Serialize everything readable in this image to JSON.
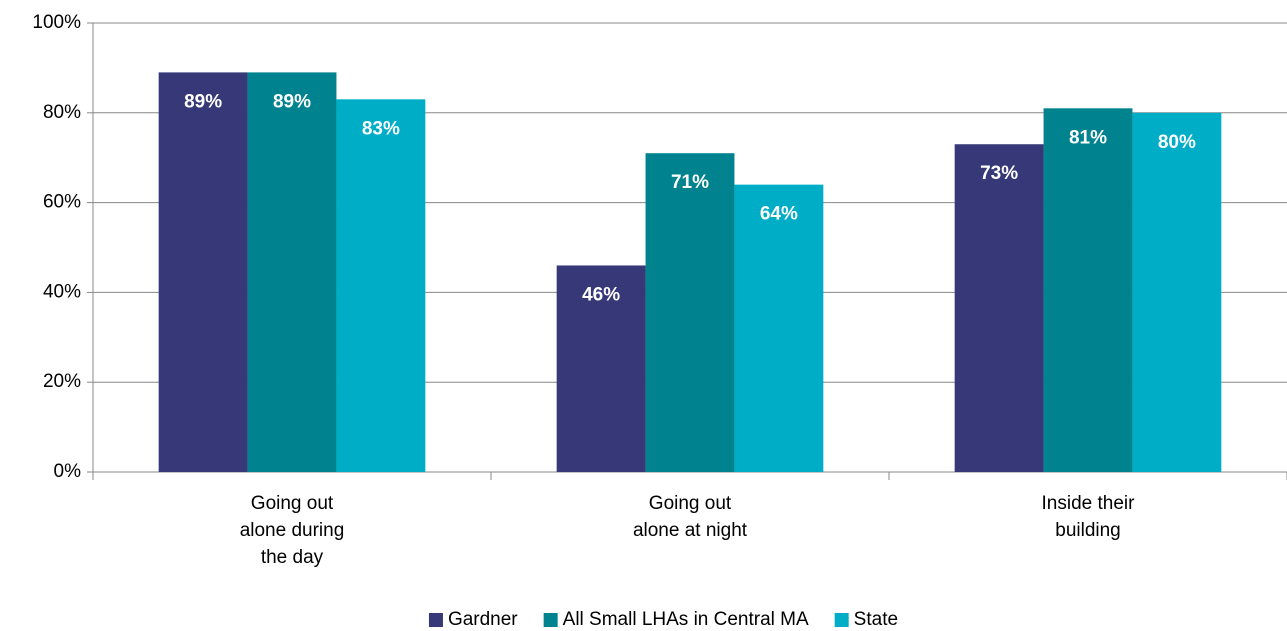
{
  "chart_data": {
    "type": "bar",
    "categories": [
      "Going out alone during the day",
      "Going out alone at night",
      "Inside their building"
    ],
    "series": [
      {
        "name": "Gardner",
        "color": "#363878",
        "values": [
          89,
          46,
          73
        ],
        "value_labels": [
          "89%",
          "46%",
          "73%"
        ]
      },
      {
        "name": "All Small LHAs in Central MA",
        "color": "#00838f",
        "values": [
          89,
          71,
          81
        ],
        "value_labels": [
          "89%",
          "71%",
          "81%"
        ]
      },
      {
        "name": "State",
        "color": "#00adc6",
        "values": [
          83,
          64,
          80
        ],
        "value_labels": [
          "83%",
          "64%",
          "80%"
        ]
      }
    ],
    "ylim": [
      0,
      100
    ],
    "yticks": [
      {
        "value": 0,
        "label": "0%"
      },
      {
        "value": 20,
        "label": "20%"
      },
      {
        "value": 40,
        "label": "40%"
      },
      {
        "value": 60,
        "label": "60%"
      },
      {
        "value": 80,
        "label": "80%"
      },
      {
        "value": 100,
        "label": "100%"
      }
    ],
    "grid": true,
    "legend": "bottom"
  }
}
